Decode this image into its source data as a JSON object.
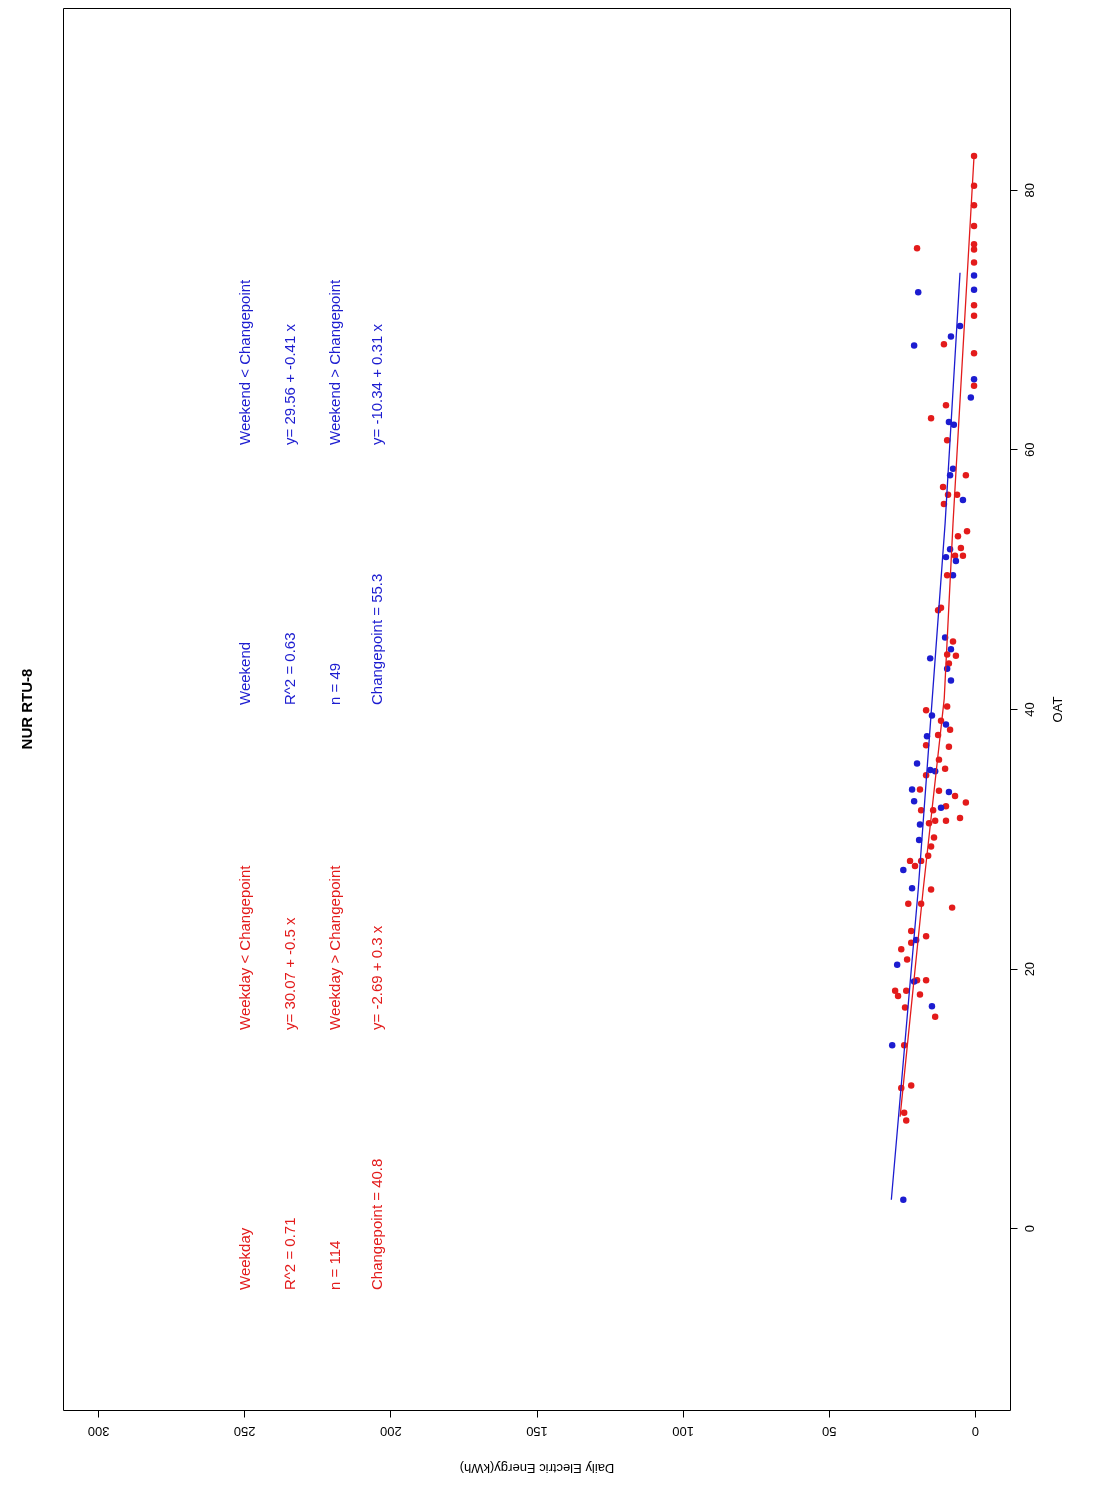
{
  "chart_data": {
    "type": "scatter",
    "title": "NUR RTU-8",
    "xlabel": "Daily Electric Energy(kWh)",
    "ylabel": "OAT",
    "xlim": [
      312,
      -12
    ],
    "xticks": [
      0,
      50,
      100,
      150,
      200,
      250,
      300
    ],
    "ylim": [
      -14,
      94
    ],
    "yticks": [
      0,
      20,
      40,
      60,
      80
    ],
    "annotations": [
      "Weekday",
      "R^2 = 0.71",
      "n = 114",
      "Changepoint = 40.8",
      "Weekday < Changepoint",
      "y= 30.07 + -0.5 x",
      "Weekday > Changepoint",
      "y= -2.69 + 0.3 x",
      "Weekend",
      "R^2 = 0.63",
      "n = 49",
      "Changepoint = 55.3",
      "Weekend < Changepoint",
      "y= 29.56 + -0.41 x",
      "Weekend > Changepoint",
      "y= -10.34 + 0.31 x"
    ],
    "series": [
      {
        "color": "#e31b1b",
        "marker": "circle",
        "x": [
          0.3,
          0.3,
          0.3,
          0.3,
          0.3,
          0.3,
          0.3,
          19.8,
          0.3,
          0.3,
          10.6,
          0.3,
          0.3,
          9.9,
          15,
          9.5,
          3.1,
          10.9,
          9.2,
          6.1,
          10.6,
          2.7,
          5.8,
          4.8,
          4.1,
          6.8,
          9.5,
          12.6,
          11.6,
          7.5,
          9.5,
          6.5,
          8.9,
          9.5,
          16.7,
          11.6,
          8.5,
          12.6,
          16.7,
          8.9,
          12.3,
          10.2,
          16.7,
          18.8,
          12.3,
          6.8,
          3.1,
          18.4,
          9.9,
          14.3,
          5.1,
          9.9,
          15.7,
          13.6,
          14.0,
          15.0,
          16.0,
          22.2,
          20.5,
          18.4,
          15.0,
          7.8,
          22.8,
          18.4,
          21.8,
          16.7,
          21.8,
          25.2,
          23.2,
          19.8,
          16.7,
          27.3,
          26.3,
          23.5,
          18.8,
          23.9,
          13.6,
          24.2,
          25.2,
          21.8,
          24.2,
          23.5
        ],
        "values": [
          82.6,
          80.3,
          78.8,
          77.2,
          75.8,
          75.4,
          74.4,
          75.5,
          71.1,
          70.3,
          68.1,
          67.4,
          64.9,
          63.4,
          62.4,
          60.7,
          58.0,
          57.1,
          56.5,
          56.5,
          55.8,
          53.7,
          53.3,
          52.4,
          51.8,
          51.8,
          50.3,
          47.6,
          47.8,
          45.2,
          44.2,
          44.1,
          43.5,
          40.2,
          39.9,
          39.1,
          38.4,
          38.0,
          37.2,
          37.1,
          36.1,
          35.4,
          34.9,
          33.8,
          33.7,
          33.3,
          32.8,
          32.2,
          32.5,
          32.2,
          31.6,
          31.4,
          31.2,
          31.4,
          30.1,
          29.4,
          28.7,
          28.3,
          27.9,
          28.3,
          26.1,
          24.7,
          25.0,
          25.0,
          22.9,
          22.5,
          22.0,
          21.5,
          20.7,
          19.1,
          19.1,
          18.3,
          17.9,
          18.3,
          18.0,
          17.0,
          16.3,
          14.1,
          10.8,
          11.0,
          8.9,
          8.3
        ]
      },
      {
        "color": "#1c1cd0",
        "marker": "circle",
        "x": [
          19.4,
          0.3,
          0.3,
          5.1,
          8.2,
          20.8,
          0.3,
          1.4,
          8.9,
          7.2,
          8.5,
          7.5,
          4.1,
          8.5,
          9.9,
          6.5,
          7.5,
          10.2,
          15.3,
          8.2,
          9.5,
          8.2,
          14.7,
          9.9,
          16.4,
          19.8,
          15.3,
          13.6,
          21.5,
          20.8,
          8.9,
          11.6,
          18.8,
          19.1,
          24.5,
          21.5,
          20.1,
          26.6,
          20.8,
          14.7,
          28.3,
          24.5
        ],
        "values": [
          72.1,
          73.4,
          72.3,
          69.5,
          68.7,
          68.0,
          65.4,
          64.0,
          62.1,
          61.9,
          58.0,
          58.5,
          56.1,
          52.3,
          51.7,
          51.4,
          50.3,
          45.5,
          43.9,
          44.6,
          43.1,
          42.2,
          39.5,
          38.8,
          37.9,
          35.8,
          35.3,
          35.2,
          33.8,
          32.9,
          33.6,
          32.4,
          31.1,
          29.9,
          27.6,
          26.2,
          22.2,
          20.3,
          19.0,
          17.1,
          14.1,
          2.2
        ]
      },
      {
        "type": "line",
        "color": "#e31b1b",
        "x": [
          25.6,
          17.7,
          10.5,
          7.5,
          0.3
        ],
        "values": [
          8.6,
          26.1,
          40.8,
          54.3,
          82.6
        ]
      },
      {
        "type": "line",
        "color": "#1c1cd0",
        "x": [
          28.6,
          19.4,
          10.2,
          5.1
        ],
        "values": [
          2.2,
          26.1,
          54.3,
          73.6
        ]
      }
    ]
  }
}
